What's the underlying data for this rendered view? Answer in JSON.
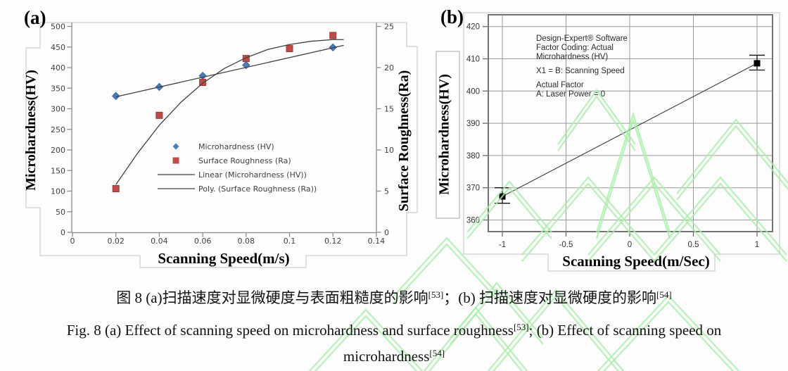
{
  "watermark_color": "#a6eda6",
  "chart_data": [
    {
      "panel": "(a)",
      "type": "scatter",
      "title": "",
      "xlabel": "Scanning Speed(m/s)",
      "ylabel_left": "Microhardness(HV)",
      "ylabel_right": "Surface Roughness(Ra)",
      "xlim": [
        0,
        0.14
      ],
      "ylim_left": [
        0,
        500
      ],
      "ylim_right": [
        0,
        25
      ],
      "grid": false,
      "legend_position": "center-right-inside",
      "xticks": [
        0,
        0.02,
        0.04,
        0.06,
        0.08,
        0.1,
        0.12,
        0.14
      ],
      "xtick_labels": [
        "0",
        "0.02",
        "0.04",
        "0.06",
        "0.08",
        "0.1",
        "0.12",
        "0.14"
      ],
      "yticks_left": [
        0,
        50,
        100,
        150,
        200,
        250,
        300,
        350,
        400,
        450,
        500
      ],
      "ytick_labels_left": [
        "0",
        "50",
        "100",
        "150",
        "200",
        "250",
        "300",
        "350",
        "400",
        "450",
        "500"
      ],
      "yticks_right": [
        0,
        5,
        10,
        15,
        20,
        25
      ],
      "ytick_labels_right": [
        "0",
        "5",
        "10",
        "15",
        "20",
        "25"
      ],
      "series": [
        {
          "name": "Microhardness (HV)",
          "axis": "left",
          "marker": "diamond",
          "color": "#4a7cb8",
          "edge": "#35639e",
          "points": [
            [
              0.02,
              331
            ],
            [
              0.04,
              353
            ],
            [
              0.06,
              380
            ],
            [
              0.08,
              406
            ],
            [
              0.12,
              449
            ]
          ]
        },
        {
          "name": "Surface Roughness (Ra)",
          "axis": "right",
          "marker": "square",
          "color": "#bf4b48",
          "edge": "#9c3835",
          "points": [
            [
              0.02,
              5.3
            ],
            [
              0.04,
              14.2
            ],
            [
              0.06,
              18.2
            ],
            [
              0.08,
              21.1
            ],
            [
              0.1,
              22.3
            ],
            [
              0.12,
              23.9
            ]
          ]
        },
        {
          "name": "Linear (Microhardness (HV))",
          "axis": "left",
          "marker": "line",
          "color": "#404040",
          "points": [
            [
              0.02,
              329
            ],
            [
              0.125,
              454
            ]
          ]
        },
        {
          "name": "Poly. (Surface Roughness (Ra))",
          "axis": "right",
          "marker": "line",
          "color": "#404040",
          "points": [
            [
              0.02,
              5.8
            ],
            [
              0.03,
              9.6
            ],
            [
              0.04,
              13.0
            ],
            [
              0.05,
              15.8
            ],
            [
              0.06,
              18.1
            ],
            [
              0.07,
              19.9
            ],
            [
              0.08,
              21.2
            ],
            [
              0.09,
              22.2
            ],
            [
              0.1,
              22.8
            ],
            [
              0.11,
              23.2
            ],
            [
              0.12,
              23.4
            ],
            [
              0.125,
              23.4
            ]
          ]
        }
      ]
    },
    {
      "panel": "(b)",
      "type": "line-scatter",
      "title": "",
      "xlabel": "Scanning Speed(m/Sec)",
      "ylabel": "Microhardness(HV)",
      "xlim": [
        -1.12,
        1.12
      ],
      "ylim": [
        356.5,
        423.5
      ],
      "grid": true,
      "xticks": [
        -1,
        -0.5,
        0,
        0.5,
        1
      ],
      "xtick_labels": [
        "-1",
        "-0.5",
        "0",
        "0.5",
        "1"
      ],
      "yticks": [
        360,
        370,
        380,
        390,
        400,
        410,
        420
      ],
      "ytick_labels": [
        "360",
        "370",
        "380",
        "390",
        "400",
        "410",
        "420"
      ],
      "annotation_lines": [
        "Design-Expert® Software",
        "Factor Coding: Actual",
        "Microhardness (HV)",
        "",
        "X1 = B: Scanning Speed",
        "",
        "Actual Factor",
        "A: Laser Power = 0"
      ],
      "marker_color": "#000000",
      "line_color": "#3c3c3c",
      "points": [
        {
          "x": -1,
          "y": 367.3,
          "err_low": 365.2,
          "err_high": 370.0
        },
        {
          "x": 1,
          "y": 408.6,
          "err_low": 406.5,
          "err_high": 411.1
        }
      ]
    }
  ],
  "caption": {
    "cn": {
      "pre": "图 8 (a)扫描速度对显微硬度与表面粗糙度的影响",
      "sup1": "[53]",
      "mid": "；(b) 扫描速度对显微硬度的影响",
      "sup2": "[54]"
    },
    "en1": {
      "pre": "Fig. 8 (a) Effect of scanning speed on microhardness and surface roughness",
      "sup": "[53]",
      "post": "; (b) Effect of scanning speed on"
    },
    "en2": {
      "pre": "microhardness",
      "sup": "[54]"
    }
  }
}
